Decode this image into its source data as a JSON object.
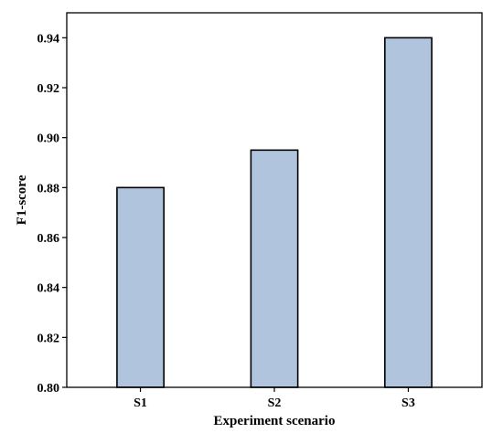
{
  "chart_data": {
    "type": "bar",
    "categories": [
      "S1",
      "S2",
      "S3"
    ],
    "values": [
      0.88,
      0.895,
      0.94
    ],
    "title": "",
    "xlabel": "Experiment scenario",
    "ylabel": "F1-score",
    "ylim": [
      0.8,
      0.95
    ],
    "yticks": [
      "0.80",
      "0.82",
      "0.84",
      "0.86",
      "0.88",
      "0.90",
      "0.92",
      "0.94"
    ],
    "grid": false,
    "legend": "none",
    "bar_color": "#b0c4de",
    "bar_edge_color": "#000000"
  }
}
